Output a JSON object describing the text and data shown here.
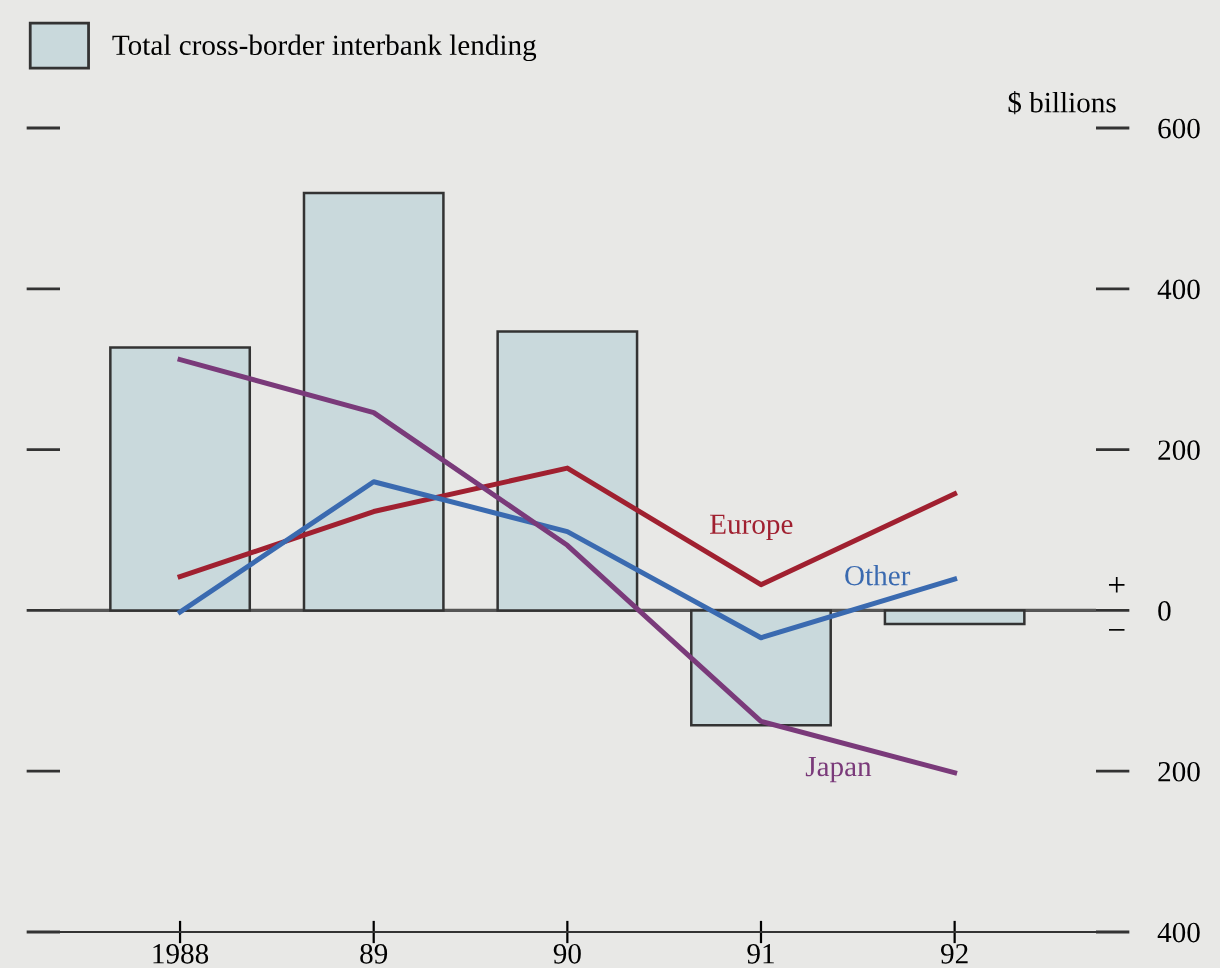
{
  "chart_data": {
    "type": "bar",
    "categories": [
      "1988",
      "89",
      "90",
      "91",
      "92"
    ],
    "ylabel": "$ billions",
    "series": [
      {
        "name": "Total cross-border interbank lending",
        "color": "#c9d9dc",
        "values": [
          327,
          519,
          347,
          -143,
          -17
        ]
      },
      {
        "name": "Europe",
        "type": "line",
        "color": "#a02030",
        "values": [
          42,
          123,
          177,
          32,
          145
        ]
      },
      {
        "name": "Other",
        "type": "line",
        "color": "#3a6ab0",
        "values": [
          -2,
          160,
          98,
          -34,
          39
        ]
      },
      {
        "name": "Japan",
        "type": "line",
        "color": "#7a3a7a",
        "values": [
          312,
          246,
          81,
          -138,
          -202
        ]
      }
    ],
    "ylim": [
      -400,
      600
    ],
    "yticks": [
      600,
      400,
      200,
      0,
      {
        "value": -200,
        "label": "200"
      },
      {
        "value": -400,
        "label": "400"
      }
    ],
    "ref_lines": [
      {
        "axis": "y",
        "value": 0,
        "color": "#555555"
      }
    ],
    "annotations": [
      "+",
      "−"
    ],
    "legend": "top left",
    "grid": false
  }
}
